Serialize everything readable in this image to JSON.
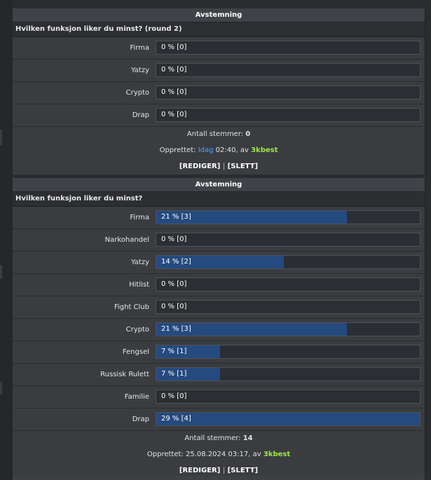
{
  "polls": [
    {
      "header": "Avstemning",
      "question": "Hvilken funksjon liker du minst? (round 2)",
      "options": [
        {
          "label": "Firma",
          "value_text": "0 % [0]",
          "percent": 0
        },
        {
          "label": "Yatzy",
          "value_text": "0 % [0]",
          "percent": 0
        },
        {
          "label": "Crypto",
          "value_text": "0 % [0]",
          "percent": 0
        },
        {
          "label": "Drap",
          "value_text": "0 % [0]",
          "percent": 0
        }
      ],
      "total_label": "Antall stemmer:",
      "total_value": "0",
      "created_label": "Opprettet:",
      "created_date": "Idag",
      "created_time": "02:40, av",
      "created_by": "3kbest",
      "edit_label": "[REDIGER]",
      "separator": "|",
      "delete_label": "[SLETT]"
    },
    {
      "header": "Avstemning",
      "question": "Hvilken funksjon liker du minst?",
      "options": [
        {
          "label": "Firma",
          "value_text": "21 % [3]",
          "percent": 21
        },
        {
          "label": "Narkohandel",
          "value_text": "0 % [0]",
          "percent": 0
        },
        {
          "label": "Yatzy",
          "value_text": "14 % [2]",
          "percent": 14
        },
        {
          "label": "Hitlist",
          "value_text": "0 % [0]",
          "percent": 0
        },
        {
          "label": "Fight Club",
          "value_text": "0 % [0]",
          "percent": 0
        },
        {
          "label": "Crypto",
          "value_text": "21 % [3]",
          "percent": 21
        },
        {
          "label": "Fengsel",
          "value_text": "7 % [1]",
          "percent": 7
        },
        {
          "label": "Russisk Rulett",
          "value_text": "7 % [1]",
          "percent": 7
        },
        {
          "label": "Familie",
          "value_text": "0 % [0]",
          "percent": 0
        },
        {
          "label": "Drap",
          "value_text": "29 % [4]",
          "percent": 29
        }
      ],
      "total_label": "Antall stemmer:",
      "total_value": "14",
      "created_label": "Opprettet:",
      "created_date": "25.08.2024",
      "created_time": "03:17, av",
      "created_by": "3kbest",
      "edit_label": "[REDIGER]",
      "separator": "|",
      "delete_label": "[SLETT]"
    }
  ],
  "colors": {
    "bar_fill": "#254a7f",
    "date_link": "#4aa3ff",
    "username": "#9fe64a"
  }
}
